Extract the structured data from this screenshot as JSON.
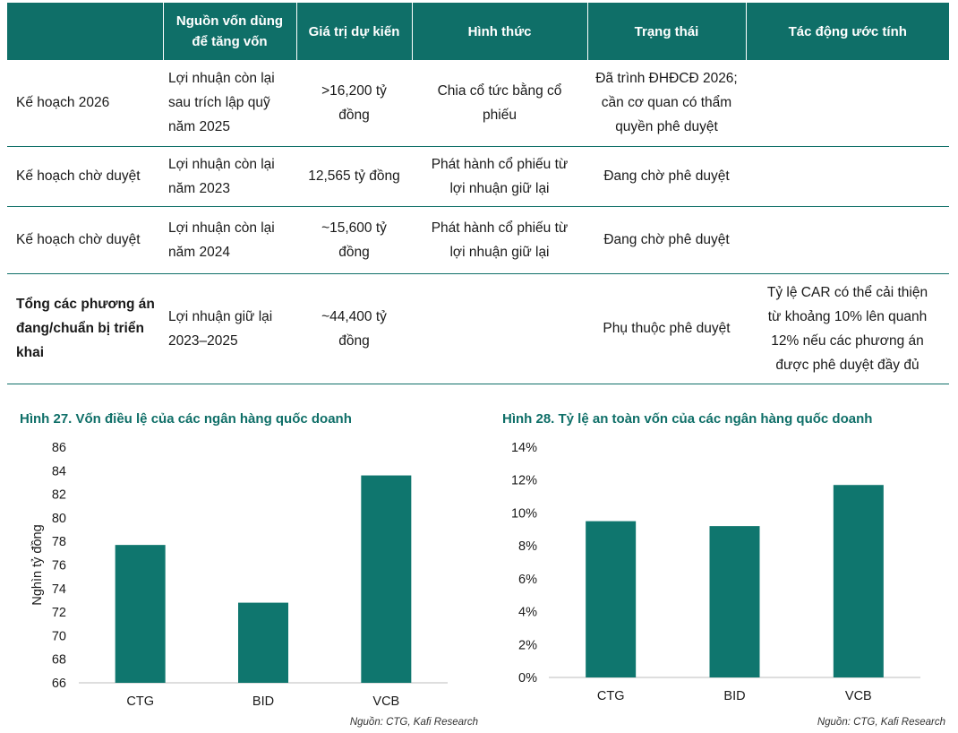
{
  "table": {
    "headers": [
      "",
      "Nguồn vốn dùng\nđể tăng vốn",
      "Giá trị dự kiến",
      "Hình thức",
      "Trạng thái",
      "Tác động ước tính"
    ],
    "rows": [
      {
        "cells": [
          "Kế hoạch 2026",
          "Lợi nhuận còn lại\nsau trích lập quỹ\nnăm 2025",
          ">16,200 tỷ\nđồng",
          "Chia cổ tức bằng cổ\nphiếu",
          "Đã trình ĐHĐCĐ 2026;\ncần cơ quan có thẩm\nquyền phê duyệt",
          ""
        ],
        "bold": false
      },
      {
        "cells": [
          "Kế hoạch chờ duyệt",
          "Lợi nhuận còn lại\nnăm 2023",
          "12,565 tỷ đồng",
          "Phát hành cổ phiếu từ\nlợi nhuận giữ lại",
          "Đang chờ phê duyệt",
          ""
        ],
        "bold": false
      },
      {
        "cells": [
          "Kế hoạch chờ duyệt",
          "Lợi nhuận còn lại\nnăm 2024",
          "~15,600 tỷ\nđồng",
          "Phát hành cổ phiếu từ\nlợi nhuận giữ lại",
          "Đang chờ phê duyệt",
          ""
        ],
        "bold": false
      },
      {
        "cells": [
          "Tổng các phương án\nđang/chuẩn bị triển\nkhai",
          "Lợi nhuận giữ lại\n2023–2025",
          "~44,400 tỷ\nđồng",
          "",
          "Phụ thuộc phê duyệt",
          "Tỷ lệ CAR có thể cải thiện\ntừ khoảng 10% lên quanh\n12% nếu các phương án\nđược phê duyệt đầy đủ"
        ],
        "bold": true
      }
    ],
    "header_color": "#0f6f68"
  },
  "figure27": {
    "title": "Hình 27. Vốn điều lệ của các ngân hàng quốc doanh",
    "source": "Nguồn: CTG, Kafi Research"
  },
  "figure28": {
    "title": "Hình 28. Tỷ lệ an toàn vốn của các ngân hàng quốc doanh",
    "source": "Nguồn: CTG, Kafi Research"
  },
  "chart_data": [
    {
      "type": "bar",
      "title": "Hình 27. Vốn điều lệ của các ngân hàng quốc doanh",
      "categories": [
        "CTG",
        "BID",
        "VCB"
      ],
      "values": [
        77.7,
        72.8,
        83.6
      ],
      "ylabel": "Nghìn tỷ đồng",
      "xlabel": "",
      "ylim": [
        66,
        86
      ],
      "yticks": [
        66,
        68,
        70,
        72,
        74,
        76,
        78,
        80,
        82,
        84,
        86
      ],
      "grid": false,
      "color": "#0f766e"
    },
    {
      "type": "bar",
      "title": "Hình 28. Tỷ lệ an toàn vốn của các ngân hàng quốc doanh",
      "categories": [
        "CTG",
        "BID",
        "VCB"
      ],
      "values": [
        9.5,
        9.2,
        11.7
      ],
      "ylabel": "",
      "xlabel": "",
      "ylim": [
        0,
        14
      ],
      "yticks": [
        0,
        2,
        4,
        6,
        8,
        10,
        12,
        14
      ],
      "tick_suffix": "%",
      "grid": false,
      "color": "#0f766e"
    }
  ]
}
